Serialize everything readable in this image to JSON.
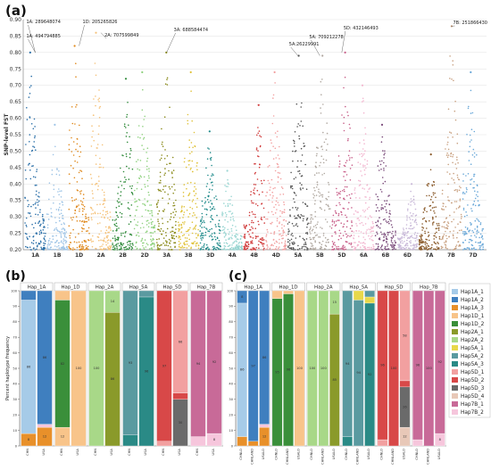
{
  "panel_labels": {
    "a": "(a)",
    "b": "(b)",
    "c": "(c)"
  },
  "chart_data": [
    {
      "type": "scatter",
      "panel": "a",
      "title": "",
      "xlabel": "",
      "ylabel": "SNP-level FST",
      "ylim": [
        0.2,
        0.9
      ],
      "yticks": [
        0.2,
        0.25,
        0.3,
        0.35,
        0.4,
        0.45,
        0.5,
        0.55,
        0.6,
        0.65,
        0.7,
        0.75,
        0.8,
        0.85,
        0.9
      ],
      "grid": true,
      "chromosomes": [
        {
          "name": "1A",
          "color": "#2a6fa8",
          "peak": 0.8
        },
        {
          "name": "1B",
          "color": "#9ec4e6",
          "peak": 0.58
        },
        {
          "name": "1D",
          "color": "#e08a1e",
          "peak": 0.82
        },
        {
          "name": "2A",
          "color": "#f5c27a",
          "peak": 0.86
        },
        {
          "name": "2B",
          "color": "#2f8a3a",
          "peak": 0.72
        },
        {
          "name": "2D",
          "color": "#8fd17f",
          "peak": 0.74
        },
        {
          "name": "3A",
          "color": "#8a8a1a",
          "peak": 0.8
        },
        {
          "name": "3B",
          "color": "#e0c23a",
          "peak": 0.74
        },
        {
          "name": "3D",
          "color": "#1f8a8a",
          "peak": 0.56
        },
        {
          "name": "4A",
          "color": "#9ad6d2",
          "peak": 0.44
        },
        {
          "name": "4B",
          "color": "#d03a3a",
          "peak": 0.64
        },
        {
          "name": "4D",
          "color": "#f2a0a0",
          "peak": 0.74
        },
        {
          "name": "5A",
          "color": "#555555",
          "peak": 0.79
        },
        {
          "name": "5B",
          "color": "#b0a8a0",
          "peak": 0.79
        },
        {
          "name": "5D",
          "color": "#c8608a",
          "peak": 0.8
        },
        {
          "name": "6A",
          "color": "#f2b6cf",
          "peak": 0.7
        },
        {
          "name": "6B",
          "color": "#7a4a7a",
          "peak": 0.58
        },
        {
          "name": "6D",
          "color": "#c8b8d8",
          "peak": 0.4
        },
        {
          "name": "7A",
          "color": "#8a5a2a",
          "peak": 0.49
        },
        {
          "name": "7B",
          "color": "#c8a080",
          "peak": 0.88
        },
        {
          "name": "7D",
          "color": "#6aa8d8",
          "peak": 0.74
        }
      ],
      "annotations": [
        {
          "text": "1A: 289648074",
          "chrom": "1A",
          "value": 0.8
        },
        {
          "text": "1A: 494794885",
          "chrom": "1A",
          "value": 0.8
        },
        {
          "text": "1D: 205265826",
          "chrom": "1D",
          "value": 0.82
        },
        {
          "text": "2A: 707599849",
          "chrom": "2A",
          "value": 0.86
        },
        {
          "text": "3A: 688584474",
          "chrom": "3A",
          "value": 0.8
        },
        {
          "text": "5A:26229991",
          "chrom": "5A",
          "value": 0.79
        },
        {
          "text": "5A: 709212278",
          "chrom": "5B",
          "value": 0.79
        },
        {
          "text": "5D: 432146493",
          "chrom": "5D",
          "value": 0.8
        },
        {
          "text": "7B: 251866430",
          "chrom": "7B",
          "value": 0.88
        }
      ]
    },
    {
      "type": "bar",
      "stacked": true,
      "panel": "b",
      "ylabel": "Percent haplotype frequency",
      "ylim": [
        0,
        100
      ],
      "yticks": [
        0,
        10,
        20,
        30,
        40,
        50,
        60,
        70,
        80,
        90,
        100
      ],
      "groups": [
        {
          "name": "Hap_1A",
          "bars": [
            {
              "category": "CHN",
              "segments": [
                {
                  "hap": "Hap1A_3",
                  "value": 8
                },
                {
                  "hap": "Hap1A_1",
                  "value": 86
                },
                {
                  "hap": "Hap1A_2",
                  "value": 6
                }
              ]
            },
            {
              "category": "USA",
              "segments": [
                {
                  "hap": "Hap1A_3",
                  "value": 12
                },
                {
                  "hap": "Hap7B_2",
                  "value": 2
                },
                {
                  "hap": "Hap1A_2",
                  "value": 86
                }
              ]
            }
          ]
        },
        {
          "name": "Hap_1D",
          "bars": [
            {
              "category": "CHN",
              "segments": [
                {
                  "hap": "Hap1D_1",
                  "value": 12
                },
                {
                  "hap": "Hap1D_2",
                  "value": 82
                },
                {
                  "hap": "Hap1D_1",
                  "value": 6
                }
              ]
            },
            {
              "category": "USA",
              "segments": [
                {
                  "hap": "Hap1D_1",
                  "value": 100
                }
              ]
            }
          ]
        },
        {
          "name": "Hap_2A",
          "bars": [
            {
              "category": "CHN",
              "segments": [
                {
                  "hap": "Hap2A_2",
                  "value": 100
                }
              ]
            },
            {
              "category": "USA",
              "segments": [
                {
                  "hap": "Hap2A_1",
                  "value": 86
                },
                {
                  "hap": "Hap2A_2",
                  "value": 14
                }
              ]
            }
          ]
        },
        {
          "name": "Hap_5A",
          "bars": [
            {
              "category": "CHN",
              "segments": [
                {
                  "hap": "Hap5A_3",
                  "value": 7
                },
                {
                  "hap": "Hap5A_2",
                  "value": 93
                }
              ]
            },
            {
              "category": "USA",
              "segments": [
                {
                  "hap": "Hap5A_3",
                  "value": 96
                },
                {
                  "hap": "Hap5A_2",
                  "value": 4
                }
              ]
            }
          ]
        },
        {
          "name": "Hap_5D",
          "bars": [
            {
              "category": "CHN",
              "segments": [
                {
                  "hap": "Hap5D_1",
                  "value": 3
                },
                {
                  "hap": "Hap5D_2",
                  "value": 97
                }
              ]
            },
            {
              "category": "USA",
              "segments": [
                {
                  "hap": "Hap5D_3",
                  "value": 30
                },
                {
                  "hap": "Hap5D_2",
                  "value": 4
                },
                {
                  "hap": "Hap5D_1",
                  "value": 66
                }
              ]
            }
          ]
        },
        {
          "name": "Hap_7B",
          "bars": [
            {
              "category": "CHN",
              "segments": [
                {
                  "hap": "Hap7B_2",
                  "value": 6
                },
                {
                  "hap": "Hap7B_1",
                  "value": 94
                }
              ]
            },
            {
              "category": "USA",
              "segments": [
                {
                  "hap": "Hap7B_2",
                  "value": 8
                },
                {
                  "hap": "Hap7B_1",
                  "value": 92
                }
              ]
            }
          ]
        }
      ]
    },
    {
      "type": "bar",
      "stacked": true,
      "panel": "c",
      "ylim": [
        0,
        100
      ],
      "yticks": [
        0,
        10,
        20,
        30,
        40,
        50,
        60,
        70,
        80,
        90,
        100
      ],
      "groups": [
        {
          "name": "Hap_1A",
          "bars": [
            {
              "category": "CHNLO",
              "segments": [
                {
                  "hap": "Hap1A_3",
                  "value": 6
                },
                {
                  "hap": "Hap1A_1",
                  "value": 86
                },
                {
                  "hap": "Hap1A_2",
                  "value": 8
                }
              ]
            },
            {
              "category": "CHNLAND",
              "segments": [
                {
                  "hap": "Hap1A_3",
                  "value": 3
                },
                {
                  "hap": "Hap1A_2",
                  "value": 97
                }
              ]
            },
            {
              "category": "USALO",
              "segments": [
                {
                  "hap": "Hap1A_3",
                  "value": 12
                },
                {
                  "hap": "Hap7B_2",
                  "value": 2
                },
                {
                  "hap": "Hap1A_2",
                  "value": 86
                }
              ]
            }
          ]
        },
        {
          "name": "Hap_1D",
          "bars": [
            {
              "category": "CHNLO",
              "segments": [
                {
                  "hap": "Hap1D_2",
                  "value": 95
                },
                {
                  "hap": "Hap1D_1",
                  "value": 5
                }
              ]
            },
            {
              "category": "CHNLAND",
              "segments": [
                {
                  "hap": "Hap1D_2",
                  "value": 98
                },
                {
                  "hap": "Hap1D_1",
                  "value": 2
                }
              ]
            },
            {
              "category": "USALO",
              "segments": [
                {
                  "hap": "Hap1D_1",
                  "value": 100
                }
              ]
            }
          ]
        },
        {
          "name": "Hap_2A",
          "bars": [
            {
              "category": "CHNLO",
              "segments": [
                {
                  "hap": "Hap2A_2",
                  "value": 100
                }
              ]
            },
            {
              "category": "CHNLAND",
              "segments": [
                {
                  "hap": "Hap2A_2",
                  "value": 100
                }
              ]
            },
            {
              "category": "USALO",
              "segments": [
                {
                  "hap": "Hap2A_1",
                  "value": 85
                },
                {
                  "hap": "Hap2A_2",
                  "value": 15
                }
              ]
            }
          ]
        },
        {
          "name": "Hap_5A",
          "bars": [
            {
              "category": "CHNLO",
              "segments": [
                {
                  "hap": "Hap5A_3",
                  "value": 6
                },
                {
                  "hap": "Hap5A_2",
                  "value": 94
                }
              ]
            },
            {
              "category": "CHNLAND",
              "segments": [
                {
                  "hap": "Hap5A_2",
                  "value": 94
                },
                {
                  "hap": "Hap5A_1",
                  "value": 6
                }
              ]
            },
            {
              "category": "USALO",
              "segments": [
                {
                  "hap": "Hap5A_3",
                  "value": 92
                },
                {
                  "hap": "Hap5A_1",
                  "value": 4
                },
                {
                  "hap": "Hap5A_2",
                  "value": 4
                }
              ]
            }
          ]
        },
        {
          "name": "Hap_5D",
          "bars": [
            {
              "category": "CHNLO",
              "segments": [
                {
                  "hap": "Hap5D_1",
                  "value": 4
                },
                {
                  "hap": "Hap5D_2",
                  "value": 96
                }
              ]
            },
            {
              "category": "CHNLAND",
              "segments": [
                {
                  "hap": "Hap5D_2",
                  "value": 100
                }
              ]
            },
            {
              "category": "USALO",
              "segments": [
                {
                  "hap": "Hap5D_4",
                  "value": 12
                },
                {
                  "hap": "Hap5D_3",
                  "value": 26
                },
                {
                  "hap": "Hap5D_2",
                  "value": 4
                },
                {
                  "hap": "Hap5D_1",
                  "value": 58
                }
              ]
            }
          ]
        },
        {
          "name": "Hap_7B",
          "bars": [
            {
              "category": "CHNLO",
              "segments": [
                {
                  "hap": "Hap7B_2",
                  "value": 4
                },
                {
                  "hap": "Hap7B_1",
                  "value": 96
                }
              ]
            },
            {
              "category": "CHNLAND",
              "segments": [
                {
                  "hap": "Hap7B_1",
                  "value": 100
                }
              ]
            },
            {
              "category": "USALO",
              "segments": [
                {
                  "hap": "Hap7B_2",
                  "value": 8
                },
                {
                  "hap": "Hap7B_1",
                  "value": 92
                }
              ]
            }
          ]
        }
      ],
      "legend": {
        "placement": "right",
        "entries": [
          {
            "name": "Hap1A_1",
            "color": "#a6cbe8"
          },
          {
            "name": "Hap1A_2",
            "color": "#3f7fbf"
          },
          {
            "name": "Hap1A_3",
            "color": "#e8902a"
          },
          {
            "name": "Hap1D_1",
            "color": "#f8c48a"
          },
          {
            "name": "Hap1D_2",
            "color": "#3a8f3a"
          },
          {
            "name": "Hap2A_1",
            "color": "#8a9a2a"
          },
          {
            "name": "Hap2A_2",
            "color": "#a8d888"
          },
          {
            "name": "Hap5A_1",
            "color": "#e8d84a"
          },
          {
            "name": "Hap5A_2",
            "color": "#5a9aa0"
          },
          {
            "name": "Hap5A_3",
            "color": "#2a8a86"
          },
          {
            "name": "Hap5D_1",
            "color": "#f2a0a0"
          },
          {
            "name": "Hap5D_2",
            "color": "#d84848"
          },
          {
            "name": "Hap5D_3",
            "color": "#6a6a6a"
          },
          {
            "name": "Hap5D_4",
            "color": "#e8c8b8"
          },
          {
            "name": "Hap7B_1",
            "color": "#c86a98"
          },
          {
            "name": "Hap7B_2",
            "color": "#f6c6dc"
          }
        ]
      }
    }
  ]
}
